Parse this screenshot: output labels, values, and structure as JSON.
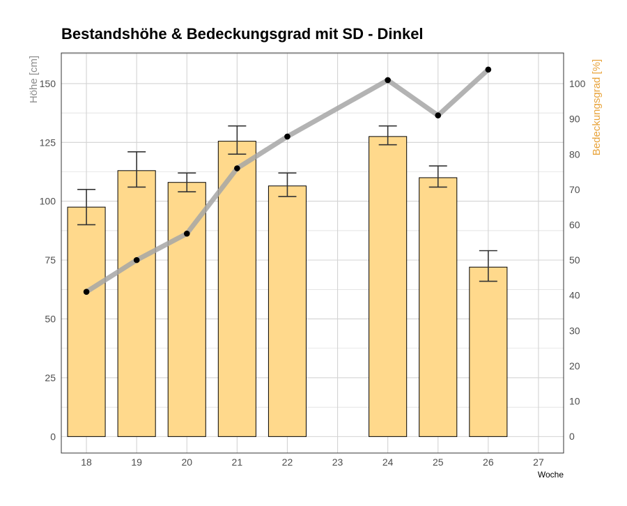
{
  "chart_data": {
    "type": "bar",
    "title": "Bestandshöhe & Bedeckungsgrad mit SD - Dinkel",
    "xlabel": "Woche",
    "ylabel_left": "Höhe [cm]",
    "ylabel_right": "Bedeckungsgrad [%]",
    "x_ticks": [
      "18",
      "19",
      "20",
      "21",
      "22",
      "23",
      "24",
      "25",
      "26",
      "27"
    ],
    "ylim_left": [
      -7,
      163
    ],
    "ylim_right": [
      -4.7,
      108.7
    ],
    "y_ticks_left": [
      0,
      25,
      50,
      75,
      100,
      125,
      150
    ],
    "y_ticks_right": [
      0,
      10,
      20,
      30,
      40,
      50,
      60,
      70,
      80,
      90,
      100
    ],
    "grid": true,
    "colors": {
      "bar_fill": "#ffd98c",
      "bar_stroke": "#000000",
      "line": "#a6a6a6",
      "point": "#000000",
      "error_bar": "#333333",
      "grid": "#d3d3d3",
      "left_axis_title": "#8c8c8c",
      "right_axis_title": "#e8a33a"
    },
    "bars": [
      {
        "week": "18",
        "height": 97.5,
        "sd_low": 90,
        "sd_high": 105
      },
      {
        "week": "19",
        "height": 113,
        "sd_low": 106,
        "sd_high": 121
      },
      {
        "week": "20",
        "height": 108,
        "sd_low": 104,
        "sd_high": 112
      },
      {
        "week": "21",
        "height": 125.5,
        "sd_low": 120,
        "sd_high": 132
      },
      {
        "week": "22",
        "height": 106.5,
        "sd_low": 102,
        "sd_high": 112
      },
      {
        "week": "24",
        "height": 127.5,
        "sd_low": 124,
        "sd_high": 132
      },
      {
        "week": "25",
        "height": 110,
        "sd_low": 106,
        "sd_high": 115
      },
      {
        "week": "26",
        "height": 72,
        "sd_low": 66,
        "sd_high": 79
      }
    ],
    "coverage": [
      {
        "week": "18",
        "value": 41
      },
      {
        "week": "19",
        "value": 50
      },
      {
        "week": "20",
        "value": 57.5
      },
      {
        "week": "21",
        "value": 76
      },
      {
        "week": "22",
        "value": 85
      },
      {
        "week": "24",
        "value": 101
      },
      {
        "week": "25",
        "value": 91
      },
      {
        "week": "26",
        "value": 104
      }
    ]
  }
}
